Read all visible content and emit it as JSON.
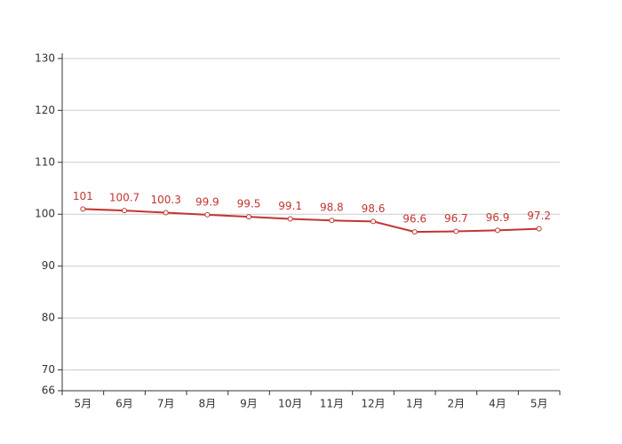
{
  "chart_data": {
    "type": "line",
    "categories": [
      "5月",
      "6月",
      "7月",
      "8月",
      "9月",
      "10月",
      "11月",
      "12月",
      "1月",
      "2月",
      "4月",
      "5月"
    ],
    "series": [
      {
        "color": "#c23531",
        "values": [
          101,
          100.7,
          100.3,
          99.9,
          99.5,
          99.1,
          98.8,
          98.6,
          96.6,
          96.7,
          96.9,
          97.2
        ]
      }
    ],
    "ylim": [
      66,
      131
    ],
    "yticks": [
      66,
      70,
      80,
      90,
      100,
      110,
      120,
      130
    ],
    "grid": true
  }
}
